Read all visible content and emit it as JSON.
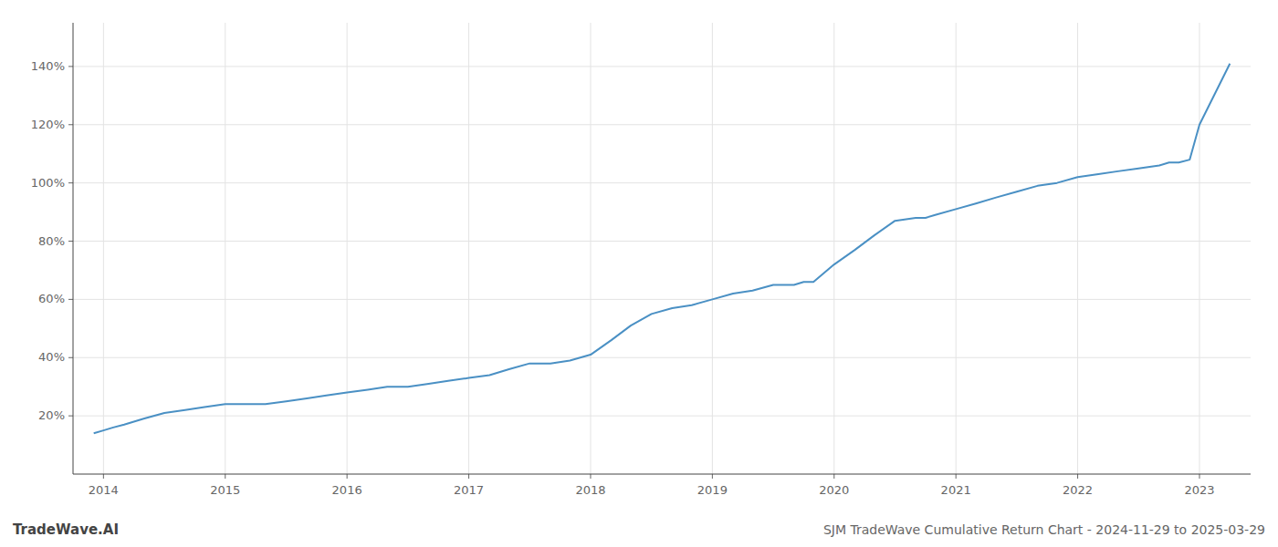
{
  "chart_data": {
    "type": "line",
    "title": "SJM TradeWave Cumulative Return Chart - 2024-11-29 to 2025-03-29",
    "annotations": [
      "TradeWave.AI"
    ],
    "x": [
      2013.92,
      2014.0,
      2014.08,
      2014.17,
      2014.25,
      2014.33,
      2014.5,
      2014.67,
      2014.83,
      2015.0,
      2015.17,
      2015.33,
      2015.5,
      2015.67,
      2015.83,
      2016.0,
      2016.17,
      2016.33,
      2016.5,
      2016.67,
      2016.83,
      2017.0,
      2017.17,
      2017.33,
      2017.5,
      2017.67,
      2017.83,
      2018.0,
      2018.17,
      2018.33,
      2018.5,
      2018.67,
      2018.83,
      2019.0,
      2019.17,
      2019.33,
      2019.5,
      2019.67,
      2019.75,
      2019.83,
      2020.0,
      2020.17,
      2020.33,
      2020.5,
      2020.67,
      2020.75,
      2020.83,
      2021.0,
      2021.17,
      2021.33,
      2021.5,
      2021.67,
      2021.83,
      2022.0,
      2022.17,
      2022.33,
      2022.5,
      2022.67,
      2022.75,
      2022.83,
      2022.92,
      2023.0,
      2023.25
    ],
    "values": [
      14,
      15,
      16,
      17,
      18,
      19,
      21,
      22,
      23,
      24,
      24,
      24,
      25,
      26,
      27,
      28,
      29,
      30,
      30,
      31,
      32,
      33,
      34,
      36,
      38,
      38,
      39,
      41,
      46,
      51,
      55,
      57,
      58,
      60,
      62,
      63,
      65,
      65,
      66,
      66,
      72,
      77,
      82,
      87,
      88,
      88,
      89,
      91,
      93,
      95,
      97,
      99,
      100,
      102,
      103,
      104,
      105,
      106,
      107,
      107,
      108,
      120,
      141
    ],
    "color": "#4a90c4",
    "xlim": [
      2013.75,
      2023.42
    ],
    "xticks": [
      2014,
      2015,
      2016,
      2017,
      2018,
      2019,
      2020,
      2021,
      2022,
      2023
    ],
    "ylim": [
      0,
      155
    ],
    "yticks": [
      {
        "value": 20,
        "label": "20%"
      },
      {
        "value": 40,
        "label": "40%"
      },
      {
        "value": 60,
        "label": "60%"
      },
      {
        "value": 80,
        "label": "80%"
      },
      {
        "value": 100,
        "label": "100%"
      },
      {
        "value": 120,
        "label": "120%"
      },
      {
        "value": 140,
        "label": "140%"
      }
    ],
    "grid": true
  }
}
